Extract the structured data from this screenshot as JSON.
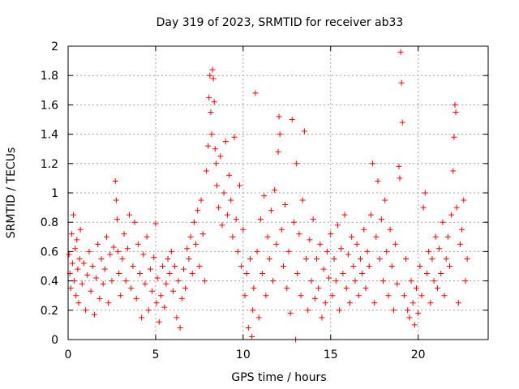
{
  "chart_data": {
    "type": "scatter",
    "title": "Day 319 of 2023, SRMTID for receiver ab33",
    "xlabel": "GPS time / hours",
    "ylabel": "SRMTID / TECUs",
    "xlim": [
      0,
      24
    ],
    "ylim": [
      0,
      2
    ],
    "xticks": [
      0,
      5,
      10,
      15,
      20
    ],
    "yticks": [
      0,
      0.2,
      0.4,
      0.6,
      0.8,
      1,
      1.2,
      1.4,
      1.6,
      1.8,
      2
    ],
    "xtick_labels": [
      "0",
      "5",
      "10",
      "15",
      "20"
    ],
    "ytick_labels": [
      "0",
      "0.2",
      "0.4",
      "0.6",
      "0.8",
      "1",
      "1.2",
      "1.4",
      "1.6",
      "1.8",
      "2"
    ],
    "grid": true,
    "marker": "+",
    "color": "#ff0000",
    "series": [
      {
        "name": "SRMTID",
        "points": [
          [
            0.05,
            0.58
          ],
          [
            0.1,
            0.45
          ],
          [
            0.15,
            0.35
          ],
          [
            0.2,
            0.72
          ],
          [
            0.25,
            0.52
          ],
          [
            0.3,
            0.85
          ],
          [
            0.35,
            0.4
          ],
          [
            0.4,
            0.62
          ],
          [
            0.45,
            0.3
          ],
          [
            0.5,
            0.68
          ],
          [
            0.55,
            0.48
          ],
          [
            0.6,
            0.25
          ],
          [
            0.65,
            0.55
          ],
          [
            0.7,
            0.75
          ],
          [
            0.8,
            0.38
          ],
          [
            0.9,
            0.52
          ],
          [
            1.0,
            0.2
          ],
          [
            1.1,
            0.44
          ],
          [
            1.2,
            0.6
          ],
          [
            1.3,
            0.33
          ],
          [
            1.4,
            0.5
          ],
          [
            1.5,
            0.17
          ],
          [
            1.6,
            0.42
          ],
          [
            1.7,
            0.65
          ],
          [
            1.8,
            0.28
          ],
          [
            1.9,
            0.55
          ],
          [
            2.0,
            0.38
          ],
          [
            2.1,
            0.48
          ],
          [
            2.2,
            0.7
          ],
          [
            2.3,
            0.25
          ],
          [
            2.4,
            0.58
          ],
          [
            2.5,
            0.4
          ],
          [
            2.6,
            0.63
          ],
          [
            2.7,
            1.08
          ],
          [
            2.75,
            0.95
          ],
          [
            2.8,
            0.82
          ],
          [
            2.85,
            0.6
          ],
          [
            2.9,
            0.45
          ],
          [
            3.0,
            0.3
          ],
          [
            3.1,
            0.55
          ],
          [
            3.2,
            0.72
          ],
          [
            3.3,
            0.4
          ],
          [
            3.4,
            0.62
          ],
          [
            3.5,
            0.85
          ],
          [
            3.6,
            0.35
          ],
          [
            3.7,
            0.5
          ],
          [
            3.8,
            0.8
          ],
          [
            3.9,
            0.28
          ],
          [
            4.0,
            0.65
          ],
          [
            4.1,
            0.45
          ],
          [
            4.2,
            0.15
          ],
          [
            4.3,
            0.58
          ],
          [
            4.4,
            0.38
          ],
          [
            4.5,
            0.7
          ],
          [
            4.6,
            0.2
          ],
          [
            4.7,
            0.48
          ],
          [
            4.8,
            0.33
          ],
          [
            4.9,
            0.56
          ],
          [
            5.0,
            0.79
          ],
          [
            5.05,
            0.25
          ],
          [
            5.1,
            0.42
          ],
          [
            5.2,
            0.12
          ],
          [
            5.3,
            0.3
          ],
          [
            5.4,
            0.5
          ],
          [
            5.5,
            0.22
          ],
          [
            5.6,
            0.38
          ],
          [
            5.7,
            0.55
          ],
          [
            5.8,
            0.45
          ],
          [
            5.9,
            0.6
          ],
          [
            6.0,
            0.33
          ],
          [
            6.1,
            0.5
          ],
          [
            6.2,
            0.15
          ],
          [
            6.3,
            0.4
          ],
          [
            6.4,
            0.08
          ],
          [
            6.5,
            0.28
          ],
          [
            6.6,
            0.48
          ],
          [
            6.7,
            0.35
          ],
          [
            6.8,
            0.62
          ],
          [
            6.9,
            0.55
          ],
          [
            7.0,
            0.7
          ],
          [
            7.1,
            0.45
          ],
          [
            7.2,
            0.8
          ],
          [
            7.3,
            0.65
          ],
          [
            7.4,
            0.88
          ],
          [
            7.5,
            0.5
          ],
          [
            7.6,
            0.95
          ],
          [
            7.7,
            0.72
          ],
          [
            7.8,
            0.4
          ],
          [
            7.9,
            1.15
          ],
          [
            8.0,
            1.32
          ],
          [
            8.05,
            1.65
          ],
          [
            8.1,
            1.8
          ],
          [
            8.15,
            1.55
          ],
          [
            8.2,
            1.4
          ],
          [
            8.25,
            1.84
          ],
          [
            8.3,
            1.78
          ],
          [
            8.35,
            1.62
          ],
          [
            8.4,
            1.3
          ],
          [
            8.45,
            1.2
          ],
          [
            8.5,
            1.05
          ],
          [
            8.6,
            0.9
          ],
          [
            8.7,
            1.25
          ],
          [
            8.8,
            0.78
          ],
          [
            8.9,
            1.0
          ],
          [
            9.0,
            1.35
          ],
          [
            9.1,
            0.85
          ],
          [
            9.2,
            1.12
          ],
          [
            9.3,
            0.95
          ],
          [
            9.4,
            0.7
          ],
          [
            9.5,
            1.38
          ],
          [
            9.6,
            0.82
          ],
          [
            9.7,
            0.6
          ],
          [
            9.8,
            1.05
          ],
          [
            9.9,
            0.5
          ],
          [
            10.0,
            0.75
          ],
          [
            10.1,
            0.3
          ],
          [
            10.2,
            0.45
          ],
          [
            10.3,
            0.08
          ],
          [
            10.4,
            0.55
          ],
          [
            10.5,
            0.02
          ],
          [
            10.55,
            0.2
          ],
          [
            10.6,
            0.35
          ],
          [
            10.7,
            1.68
          ],
          [
            10.8,
            0.6
          ],
          [
            10.9,
            0.15
          ],
          [
            11.0,
            0.82
          ],
          [
            11.1,
            0.45
          ],
          [
            11.2,
            0.98
          ],
          [
            11.3,
            0.3
          ],
          [
            11.4,
            0.7
          ],
          [
            11.5,
            0.55
          ],
          [
            11.6,
            0.88
          ],
          [
            11.7,
            0.4
          ],
          [
            11.8,
            1.02
          ],
          [
            11.9,
            0.65
          ],
          [
            12.0,
            1.28
          ],
          [
            12.05,
            1.52
          ],
          [
            12.1,
            1.4
          ],
          [
            12.2,
            0.75
          ],
          [
            12.3,
            0.5
          ],
          [
            12.4,
            0.92
          ],
          [
            12.5,
            0.35
          ],
          [
            12.6,
            0.6
          ],
          [
            12.7,
            0.18
          ],
          [
            12.8,
            1.5
          ],
          [
            12.9,
            0.8
          ],
          [
            13.0,
            0.0
          ],
          [
            13.05,
            1.2
          ],
          [
            13.1,
            0.45
          ],
          [
            13.2,
            0.72
          ],
          [
            13.3,
            0.3
          ],
          [
            13.4,
            0.95
          ],
          [
            13.5,
            1.42
          ],
          [
            13.6,
            0.55
          ],
          [
            13.7,
            0.2
          ],
          [
            13.8,
            0.68
          ],
          [
            13.9,
            0.4
          ],
          [
            14.0,
            0.82
          ],
          [
            14.1,
            0.28
          ],
          [
            14.2,
            0.55
          ],
          [
            14.3,
            0.35
          ],
          [
            14.4,
            0.65
          ],
          [
            14.5,
            0.15
          ],
          [
            14.6,
            0.48
          ],
          [
            14.7,
            0.25
          ],
          [
            14.8,
            0.6
          ],
          [
            14.9,
            0.42
          ],
          [
            15.0,
            0.72
          ],
          [
            15.1,
            0.3
          ],
          [
            15.2,
            0.55
          ],
          [
            15.3,
            0.4
          ],
          [
            15.4,
            0.78
          ],
          [
            15.5,
            0.2
          ],
          [
            15.6,
            0.62
          ],
          [
            15.7,
            0.45
          ],
          [
            15.8,
            0.85
          ],
          [
            15.9,
            0.35
          ],
          [
            16.0,
            0.58
          ],
          [
            16.1,
            0.25
          ],
          [
            16.2,
            0.7
          ],
          [
            16.3,
            0.5
          ],
          [
            16.4,
            0.4
          ],
          [
            16.5,
            0.65
          ],
          [
            16.6,
            0.3
          ],
          [
            16.7,
            0.55
          ],
          [
            16.8,
            0.45
          ],
          [
            16.9,
            0.75
          ],
          [
            17.0,
            0.35
          ],
          [
            17.1,
            0.6
          ],
          [
            17.2,
            0.5
          ],
          [
            17.3,
            0.85
          ],
          [
            17.4,
            1.2
          ],
          [
            17.5,
            0.25
          ],
          [
            17.6,
            0.7
          ],
          [
            17.7,
            1.08
          ],
          [
            17.8,
            0.55
          ],
          [
            17.9,
            0.82
          ],
          [
            18.0,
            0.4
          ],
          [
            18.1,
            0.95
          ],
          [
            18.2,
            0.6
          ],
          [
            18.3,
            0.3
          ],
          [
            18.4,
            0.75
          ],
          [
            18.5,
            0.5
          ],
          [
            18.6,
            0.2
          ],
          [
            18.7,
            0.65
          ],
          [
            18.8,
            0.38
          ],
          [
            18.9,
            1.18
          ],
          [
            18.95,
            1.1
          ],
          [
            19.0,
            1.96
          ],
          [
            19.05,
            1.75
          ],
          [
            19.1,
            1.48
          ],
          [
            19.2,
            0.3
          ],
          [
            19.3,
            0.55
          ],
          [
            19.4,
            0.2
          ],
          [
            19.5,
            0.15
          ],
          [
            19.6,
            0.4
          ],
          [
            19.7,
            0.25
          ],
          [
            19.8,
            0.1
          ],
          [
            19.9,
            0.35
          ],
          [
            20.0,
            0.18
          ],
          [
            20.1,
            0.5
          ],
          [
            20.2,
            0.3
          ],
          [
            20.3,
            0.9
          ],
          [
            20.4,
            1.0
          ],
          [
            20.5,
            0.45
          ],
          [
            20.6,
            0.6
          ],
          [
            20.7,
            0.25
          ],
          [
            20.8,
            0.55
          ],
          [
            20.9,
            0.4
          ],
          [
            21.0,
            0.7
          ],
          [
            21.1,
            0.35
          ],
          [
            21.2,
            0.62
          ],
          [
            21.3,
            0.45
          ],
          [
            21.4,
            0.8
          ],
          [
            21.5,
            0.3
          ],
          [
            21.6,
            0.55
          ],
          [
            21.7,
            0.7
          ],
          [
            21.8,
            0.5
          ],
          [
            21.9,
            0.85
          ],
          [
            22.0,
            1.15
          ],
          [
            22.05,
            1.38
          ],
          [
            22.1,
            1.6
          ],
          [
            22.15,
            1.55
          ],
          [
            22.2,
            0.9
          ],
          [
            22.3,
            0.25
          ],
          [
            22.4,
            0.65
          ],
          [
            22.5,
            0.75
          ],
          [
            22.6,
            0.95
          ],
          [
            22.7,
            0.4
          ],
          [
            22.8,
            0.55
          ]
        ]
      }
    ]
  }
}
